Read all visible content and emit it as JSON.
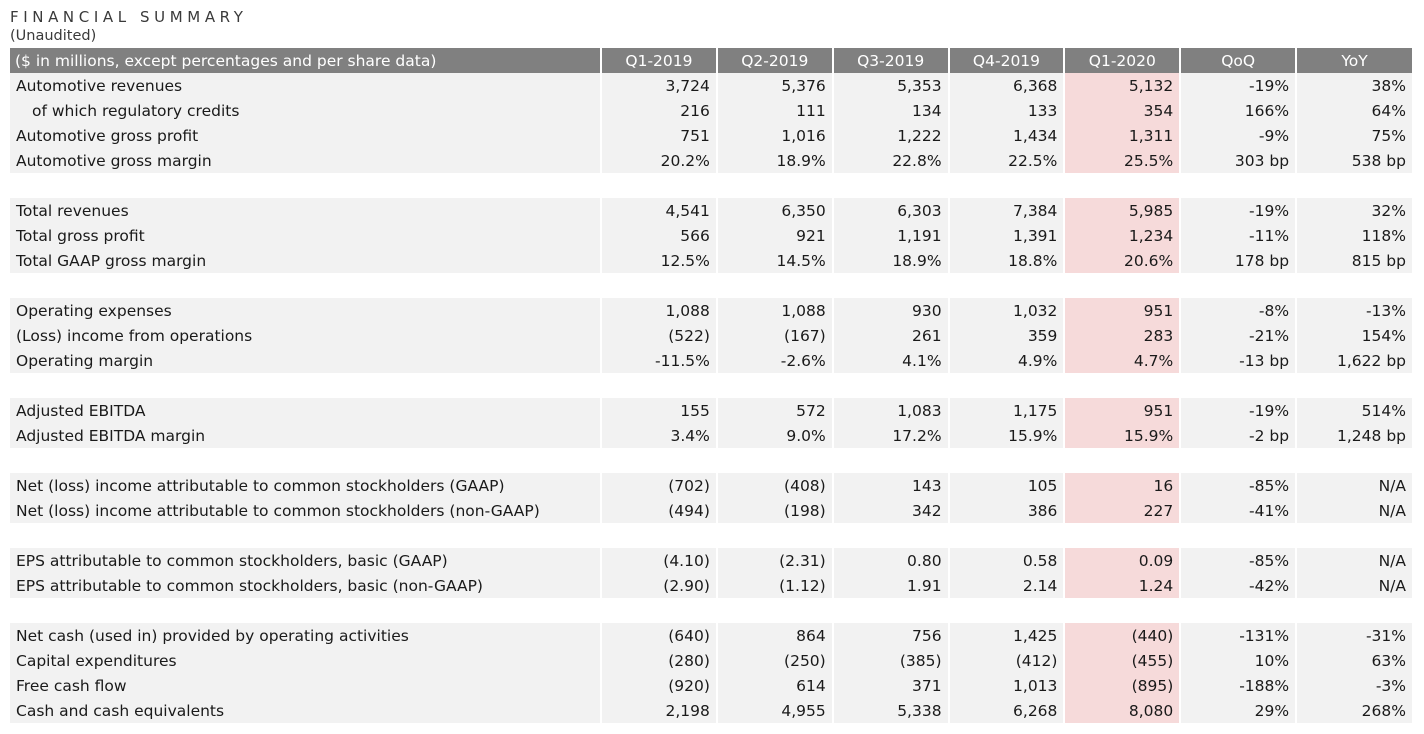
{
  "title": "FINANCIAL SUMMARY",
  "subtitle": "(Unaudited)",
  "header": {
    "label": "($ in millions, except percentages and per share data)",
    "columns": [
      "Q1-2019",
      "Q2-2019",
      "Q3-2019",
      "Q4-2019",
      "Q1-2020",
      "QoQ",
      "YoY"
    ]
  },
  "highlight_color": "#f6dada",
  "groups": [
    {
      "rows": [
        {
          "label": "Automotive revenues",
          "indent": false,
          "values": [
            "3,724",
            "5,376",
            "5,353",
            "6,368",
            "5,132",
            "-19%",
            "38%"
          ]
        },
        {
          "label": "of which regulatory credits",
          "indent": true,
          "values": [
            "216",
            "111",
            "134",
            "133",
            "354",
            "166%",
            "64%"
          ]
        },
        {
          "label": "Automotive gross profit",
          "indent": false,
          "values": [
            "751",
            "1,016",
            "1,222",
            "1,434",
            "1,311",
            "-9%",
            "75%"
          ]
        },
        {
          "label": "Automotive gross margin",
          "indent": false,
          "values": [
            "20.2%",
            "18.9%",
            "22.8%",
            "22.5%",
            "25.5%",
            "303 bp",
            "538 bp"
          ]
        }
      ]
    },
    {
      "rows": [
        {
          "label": "Total revenues",
          "indent": false,
          "values": [
            "4,541",
            "6,350",
            "6,303",
            "7,384",
            "5,985",
            "-19%",
            "32%"
          ]
        },
        {
          "label": "Total gross profit",
          "indent": false,
          "values": [
            "566",
            "921",
            "1,191",
            "1,391",
            "1,234",
            "-11%",
            "118%"
          ]
        },
        {
          "label": "Total GAAP gross margin",
          "indent": false,
          "values": [
            "12.5%",
            "14.5%",
            "18.9%",
            "18.8%",
            "20.6%",
            "178 bp",
            "815 bp"
          ]
        }
      ]
    },
    {
      "rows": [
        {
          "label": "Operating expenses",
          "indent": false,
          "values": [
            "1,088",
            "1,088",
            "930",
            "1,032",
            "951",
            "-8%",
            "-13%"
          ]
        },
        {
          "label": "(Loss) income from operations",
          "indent": false,
          "values": [
            "(522)",
            "(167)",
            "261",
            "359",
            "283",
            "-21%",
            "154%"
          ]
        },
        {
          "label": "Operating margin",
          "indent": false,
          "values": [
            "-11.5%",
            "-2.6%",
            "4.1%",
            "4.9%",
            "4.7%",
            "-13 bp",
            "1,622 bp"
          ]
        }
      ]
    },
    {
      "rows": [
        {
          "label": "Adjusted EBITDA",
          "indent": false,
          "values": [
            "155",
            "572",
            "1,083",
            "1,175",
            "951",
            "-19%",
            "514%"
          ]
        },
        {
          "label": "Adjusted EBITDA margin",
          "indent": false,
          "values": [
            "3.4%",
            "9.0%",
            "17.2%",
            "15.9%",
            "15.9%",
            "-2 bp",
            "1,248 bp"
          ]
        }
      ]
    },
    {
      "rows": [
        {
          "label": "Net (loss) income attributable to common stockholders (GAAP)",
          "indent": false,
          "values": [
            "(702)",
            "(408)",
            "143",
            "105",
            "16",
            "-85%",
            "N/A"
          ]
        },
        {
          "label": "Net (loss) income attributable to common stockholders (non-GAAP)",
          "indent": false,
          "values": [
            "(494)",
            "(198)",
            "342",
            "386",
            "227",
            "-41%",
            "N/A"
          ]
        }
      ]
    },
    {
      "rows": [
        {
          "label": "EPS attributable to common stockholders, basic (GAAP)",
          "indent": false,
          "values": [
            "(4.10)",
            "(2.31)",
            "0.80",
            "0.58",
            "0.09",
            "-85%",
            "N/A"
          ]
        },
        {
          "label": "EPS attributable to common stockholders, basic (non-GAAP)",
          "indent": false,
          "values": [
            "(2.90)",
            "(1.12)",
            "1.91",
            "2.14",
            "1.24",
            "-42%",
            "N/A"
          ]
        }
      ]
    },
    {
      "rows": [
        {
          "label": "Net cash (used in) provided by operating activities",
          "indent": false,
          "values": [
            "(640)",
            "864",
            "756",
            "1,425",
            "(440)",
            "-131%",
            "-31%"
          ]
        },
        {
          "label": "Capital expenditures",
          "indent": false,
          "values": [
            "(280)",
            "(250)",
            "(385)",
            "(412)",
            "(455)",
            "10%",
            "63%"
          ]
        },
        {
          "label": "Free cash flow",
          "indent": false,
          "values": [
            "(920)",
            "614",
            "371",
            "1,013",
            "(895)",
            "-188%",
            "-3%"
          ]
        },
        {
          "label": "Cash and cash equivalents",
          "indent": false,
          "values": [
            "2,198",
            "4,955",
            "5,338",
            "6,268",
            "8,080",
            "29%",
            "268%"
          ]
        }
      ]
    }
  ]
}
